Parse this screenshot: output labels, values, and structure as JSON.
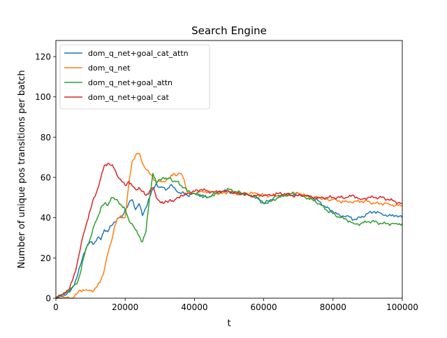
{
  "chart_data": {
    "type": "line",
    "title": "Search Engine",
    "xlabel": "t",
    "ylabel": "Number of unique pos transitions per batch",
    "xlim": [
      0,
      100000
    ],
    "ylim": [
      0,
      128
    ],
    "xticks": [
      0,
      20000,
      40000,
      60000,
      80000,
      100000
    ],
    "yticks": [
      0,
      20,
      40,
      60,
      80,
      100,
      120
    ],
    "legend_position": "top-left",
    "grid": false,
    "series": [
      {
        "name": "dom_q_net+goal_cat_attn",
        "color": "#1f77b4",
        "points": [
          [
            0,
            0
          ],
          [
            2000,
            1
          ],
          [
            4000,
            3
          ],
          [
            5000,
            6
          ],
          [
            6000,
            10
          ],
          [
            7000,
            16
          ],
          [
            8000,
            22
          ],
          [
            9000,
            26
          ],
          [
            10000,
            28
          ],
          [
            11000,
            27
          ],
          [
            12000,
            30
          ],
          [
            13000,
            29
          ],
          [
            14000,
            34
          ],
          [
            15000,
            33
          ],
          [
            16000,
            36
          ],
          [
            17000,
            38
          ],
          [
            18000,
            40
          ],
          [
            19000,
            40
          ],
          [
            20000,
            44
          ],
          [
            21000,
            47
          ],
          [
            22000,
            49
          ],
          [
            23000,
            44
          ],
          [
            24000,
            47
          ],
          [
            25000,
            41
          ],
          [
            26000,
            45
          ],
          [
            27000,
            50
          ],
          [
            28000,
            54
          ],
          [
            29000,
            57
          ],
          [
            30000,
            55
          ],
          [
            31000,
            55
          ],
          [
            32000,
            54
          ],
          [
            33000,
            56
          ],
          [
            34000,
            55
          ],
          [
            35000,
            53
          ],
          [
            36000,
            52
          ],
          [
            37000,
            52
          ],
          [
            38000,
            51
          ],
          [
            40000,
            52
          ],
          [
            42000,
            51
          ],
          [
            44000,
            50
          ],
          [
            46000,
            52
          ],
          [
            48000,
            53
          ],
          [
            50000,
            53
          ],
          [
            52000,
            52
          ],
          [
            54000,
            52
          ],
          [
            56000,
            51
          ],
          [
            58000,
            50
          ],
          [
            60000,
            47
          ],
          [
            62000,
            49
          ],
          [
            64000,
            51
          ],
          [
            66000,
            51
          ],
          [
            68000,
            51
          ],
          [
            70000,
            52
          ],
          [
            72000,
            51
          ],
          [
            74000,
            50
          ],
          [
            76000,
            48
          ],
          [
            78000,
            45
          ],
          [
            80000,
            43
          ],
          [
            82000,
            41
          ],
          [
            84000,
            41
          ],
          [
            86000,
            39
          ],
          [
            88000,
            40
          ],
          [
            90000,
            42
          ],
          [
            92000,
            43
          ],
          [
            94000,
            42
          ],
          [
            96000,
            41
          ],
          [
            98000,
            41
          ],
          [
            100000,
            40
          ]
        ]
      },
      {
        "name": "dom_q_net",
        "color": "#ff7f0e",
        "points": [
          [
            0,
            0
          ],
          [
            5000,
            0
          ],
          [
            6000,
            2
          ],
          [
            7000,
            4
          ],
          [
            9000,
            4
          ],
          [
            11000,
            4
          ],
          [
            12000,
            6
          ],
          [
            13000,
            9
          ],
          [
            14000,
            14
          ],
          [
            15000,
            22
          ],
          [
            16000,
            28
          ],
          [
            17000,
            36
          ],
          [
            18000,
            40
          ],
          [
            19000,
            41
          ],
          [
            20000,
            40
          ],
          [
            21000,
            56
          ],
          [
            22000,
            68
          ],
          [
            23000,
            71
          ],
          [
            24000,
            72
          ],
          [
            25000,
            67
          ],
          [
            26000,
            64
          ],
          [
            27000,
            62
          ],
          [
            28000,
            60
          ],
          [
            29000,
            58
          ],
          [
            30000,
            58
          ],
          [
            31000,
            58
          ],
          [
            32000,
            59
          ],
          [
            33000,
            60
          ],
          [
            34000,
            62
          ],
          [
            35000,
            61
          ],
          [
            36000,
            62
          ],
          [
            37000,
            59
          ],
          [
            38000,
            52
          ],
          [
            40000,
            52
          ],
          [
            42000,
            53
          ],
          [
            44000,
            53
          ],
          [
            46000,
            52
          ],
          [
            48000,
            52
          ],
          [
            50000,
            53
          ],
          [
            52000,
            52
          ],
          [
            54000,
            52
          ],
          [
            56000,
            52
          ],
          [
            58000,
            52
          ],
          [
            60000,
            51
          ],
          [
            62000,
            51
          ],
          [
            64000,
            51
          ],
          [
            66000,
            51
          ],
          [
            68000,
            52
          ],
          [
            70000,
            52
          ],
          [
            72000,
            51
          ],
          [
            74000,
            50
          ],
          [
            76000,
            50
          ],
          [
            78000,
            49
          ],
          [
            80000,
            49
          ],
          [
            82000,
            48
          ],
          [
            84000,
            48
          ],
          [
            86000,
            48
          ],
          [
            88000,
            48
          ],
          [
            90000,
            48
          ],
          [
            92000,
            47
          ],
          [
            94000,
            47
          ],
          [
            96000,
            47
          ],
          [
            98000,
            46
          ],
          [
            100000,
            46
          ]
        ]
      },
      {
        "name": "dom_q_net+goal_attn",
        "color": "#2ca02c",
        "points": [
          [
            0,
            0
          ],
          [
            2000,
            2
          ],
          [
            4000,
            4
          ],
          [
            6000,
            7
          ],
          [
            7000,
            12
          ],
          [
            8000,
            20
          ],
          [
            9000,
            26
          ],
          [
            10000,
            30
          ],
          [
            11000,
            36
          ],
          [
            12000,
            40
          ],
          [
            13000,
            45
          ],
          [
            14000,
            47
          ],
          [
            15000,
            46
          ],
          [
            16000,
            50
          ],
          [
            17000,
            49
          ],
          [
            18000,
            48
          ],
          [
            19000,
            46
          ],
          [
            20000,
            44
          ],
          [
            21000,
            39
          ],
          [
            22000,
            37
          ],
          [
            23000,
            34
          ],
          [
            24000,
            31
          ],
          [
            25000,
            28
          ],
          [
            26000,
            33
          ],
          [
            27000,
            49
          ],
          [
            28000,
            62
          ],
          [
            29000,
            57
          ],
          [
            30000,
            59
          ],
          [
            31000,
            60
          ],
          [
            32000,
            59
          ],
          [
            33000,
            60
          ],
          [
            34000,
            58
          ],
          [
            35000,
            58
          ],
          [
            36000,
            56
          ],
          [
            37000,
            55
          ],
          [
            38000,
            53
          ],
          [
            40000,
            52
          ],
          [
            42000,
            51
          ],
          [
            44000,
            50
          ],
          [
            46000,
            52
          ],
          [
            48000,
            53
          ],
          [
            50000,
            54
          ],
          [
            52000,
            53
          ],
          [
            54000,
            52
          ],
          [
            56000,
            51
          ],
          [
            58000,
            50
          ],
          [
            60000,
            47
          ],
          [
            62000,
            48
          ],
          [
            64000,
            50
          ],
          [
            66000,
            51
          ],
          [
            68000,
            52
          ],
          [
            70000,
            51
          ],
          [
            72000,
            50
          ],
          [
            74000,
            49
          ],
          [
            76000,
            47
          ],
          [
            78000,
            44
          ],
          [
            80000,
            42
          ],
          [
            82000,
            40
          ],
          [
            84000,
            39
          ],
          [
            86000,
            37
          ],
          [
            88000,
            37
          ],
          [
            90000,
            38
          ],
          [
            92000,
            38
          ],
          [
            94000,
            37
          ],
          [
            96000,
            37
          ],
          [
            98000,
            37
          ],
          [
            100000,
            37
          ]
        ]
      },
      {
        "name": "dom_q_net+goal_cat",
        "color": "#d62728",
        "points": [
          [
            0,
            0
          ],
          [
            2000,
            2
          ],
          [
            4000,
            5
          ],
          [
            5000,
            10
          ],
          [
            6000,
            16
          ],
          [
            7000,
            24
          ],
          [
            8000,
            32
          ],
          [
            9000,
            38
          ],
          [
            10000,
            44
          ],
          [
            11000,
            50
          ],
          [
            12000,
            54
          ],
          [
            13000,
            60
          ],
          [
            14000,
            66
          ],
          [
            15000,
            67
          ],
          [
            16000,
            66
          ],
          [
            17000,
            64
          ],
          [
            18000,
            60
          ],
          [
            19000,
            58
          ],
          [
            20000,
            56
          ],
          [
            21000,
            58
          ],
          [
            22000,
            56
          ],
          [
            23000,
            54
          ],
          [
            24000,
            55
          ],
          [
            25000,
            53
          ],
          [
            26000,
            51
          ],
          [
            27000,
            53
          ],
          [
            28000,
            55
          ],
          [
            29000,
            50
          ],
          [
            30000,
            48
          ],
          [
            31000,
            47
          ],
          [
            32000,
            48
          ],
          [
            33000,
            49
          ],
          [
            34000,
            48
          ],
          [
            35000,
            50
          ],
          [
            36000,
            51
          ],
          [
            37000,
            51
          ],
          [
            38000,
            52
          ],
          [
            40000,
            53
          ],
          [
            42000,
            54
          ],
          [
            44000,
            53
          ],
          [
            46000,
            53
          ],
          [
            48000,
            53
          ],
          [
            50000,
            53
          ],
          [
            52000,
            52
          ],
          [
            54000,
            52
          ],
          [
            56000,
            51
          ],
          [
            58000,
            51
          ],
          [
            60000,
            51
          ],
          [
            62000,
            51
          ],
          [
            64000,
            52
          ],
          [
            66000,
            52
          ],
          [
            68000,
            51
          ],
          [
            70000,
            51
          ],
          [
            72000,
            51
          ],
          [
            74000,
            50
          ],
          [
            76000,
            50
          ],
          [
            78000,
            50
          ],
          [
            80000,
            50
          ],
          [
            82000,
            50
          ],
          [
            84000,
            50
          ],
          [
            86000,
            51
          ],
          [
            88000,
            49
          ],
          [
            90000,
            50
          ],
          [
            92000,
            50
          ],
          [
            94000,
            50
          ],
          [
            96000,
            49
          ],
          [
            98000,
            48
          ],
          [
            100000,
            47
          ]
        ]
      }
    ]
  }
}
